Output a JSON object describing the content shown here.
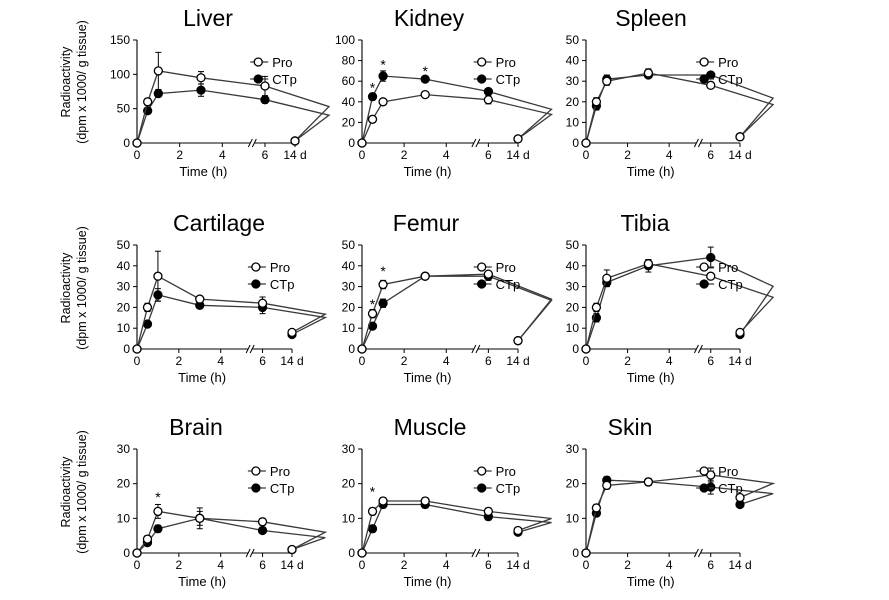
{
  "ylabel_line1": "Radioactivity",
  "ylabel_line2": "(dpm x 1000/ g tissue)",
  "chart_data": [
    {
      "type": "line",
      "title": "Liver",
      "xlabel": "Time (h)",
      "x_ticks": [
        "0",
        "2",
        "4",
        "6",
        "14 d"
      ],
      "ylim": [
        0,
        150
      ],
      "y_ticks": [
        0,
        50,
        100,
        150
      ],
      "legend": [
        "Pro",
        "CTp"
      ],
      "x": [
        0,
        0.5,
        1,
        3,
        6,
        9,
        14
      ],
      "series": [
        {
          "name": "Pro",
          "marker": "open",
          "values": [
            0,
            60,
            105,
            95,
            83,
            null,
            3
          ],
          "errors": [
            0,
            5,
            27,
            9,
            14,
            0,
            0
          ]
        },
        {
          "name": "CTp",
          "marker": "filled",
          "values": [
            0,
            47,
            72,
            77,
            63,
            null,
            3
          ],
          "errors": [
            0,
            4,
            5,
            9,
            5,
            0,
            0
          ]
        }
      ],
      "asterisks": []
    },
    {
      "type": "line",
      "title": "Kidney",
      "xlabel": "Time (h)",
      "x_ticks": [
        "0",
        "2",
        "4",
        "6",
        "14 d"
      ],
      "ylim": [
        0,
        100
      ],
      "y_ticks": [
        0,
        20,
        40,
        60,
        80,
        100
      ],
      "legend": [
        "Pro",
        "CTp"
      ],
      "x": [
        0,
        0.5,
        1,
        3,
        6,
        9,
        14
      ],
      "series": [
        {
          "name": "Pro",
          "marker": "open",
          "values": [
            0,
            23,
            40,
            47,
            42,
            null,
            4
          ],
          "errors": [
            0,
            2,
            3,
            2,
            4,
            0,
            0
          ]
        },
        {
          "name": "CTp",
          "marker": "filled",
          "values": [
            0,
            45,
            65,
            62,
            50,
            null,
            4
          ],
          "errors": [
            0,
            3,
            5,
            2,
            2,
            0,
            0
          ]
        }
      ],
      "asterisks": [
        {
          "x": 0.5,
          "y": 55,
          "text": "*"
        },
        {
          "x": 1,
          "y": 77,
          "text": "*"
        },
        {
          "x": 3,
          "y": 71,
          "text": "*"
        }
      ]
    },
    {
      "type": "line",
      "title": "Spleen",
      "xlabel": "Time (h)",
      "x_ticks": [
        "0",
        "2",
        "4",
        "6",
        "14 d"
      ],
      "ylim": [
        0,
        50
      ],
      "y_ticks": [
        0,
        10,
        20,
        30,
        40,
        50
      ],
      "legend": [
        "Pro",
        "CTp"
      ],
      "x": [
        0,
        0.5,
        1,
        3,
        6,
        9,
        14
      ],
      "series": [
        {
          "name": "Pro",
          "marker": "open",
          "values": [
            0,
            20,
            30,
            34,
            28,
            null,
            3
          ],
          "errors": [
            0,
            2,
            2,
            2,
            1,
            0,
            0
          ]
        },
        {
          "name": "CTp",
          "marker": "filled",
          "values": [
            0,
            18,
            31,
            33,
            33,
            null,
            3
          ],
          "errors": [
            0,
            2,
            2,
            1,
            1,
            0,
            0
          ]
        }
      ],
      "asterisks": []
    },
    {
      "type": "line",
      "title": "Cartilage",
      "xlabel": "Time (h)",
      "x_ticks": [
        "0",
        "2",
        "4",
        "6",
        "14 d"
      ],
      "ylim": [
        0,
        50
      ],
      "y_ticks": [
        0,
        10,
        20,
        30,
        40,
        50
      ],
      "legend": [
        "Pro",
        "CTp"
      ],
      "x": [
        0,
        0.5,
        1,
        3,
        6,
        9,
        14
      ],
      "series": [
        {
          "name": "Pro",
          "marker": "open",
          "values": [
            0,
            20,
            35,
            24,
            22,
            null,
            8
          ],
          "errors": [
            0,
            2,
            12,
            1,
            3,
            0,
            0
          ]
        },
        {
          "name": "CTp",
          "marker": "filled",
          "values": [
            0,
            12,
            26,
            21,
            20,
            null,
            7
          ],
          "errors": [
            0,
            1,
            3,
            1,
            3,
            0,
            0
          ]
        }
      ],
      "asterisks": []
    },
    {
      "type": "line",
      "title": "Femur",
      "xlabel": "Time (h)",
      "x_ticks": [
        "0",
        "2",
        "4",
        "6",
        "14 d"
      ],
      "ylim": [
        0,
        50
      ],
      "y_ticks": [
        0,
        10,
        20,
        30,
        40,
        50
      ],
      "legend": [
        "Pro",
        "CTp"
      ],
      "x": [
        0,
        0.5,
        1,
        3,
        6,
        9,
        14
      ],
      "series": [
        {
          "name": "Pro",
          "marker": "open",
          "values": [
            0,
            17,
            31,
            35,
            36,
            null,
            4
          ],
          "errors": [
            0,
            2,
            2,
            1,
            1,
            0,
            0
          ]
        },
        {
          "name": "CTp",
          "marker": "filled",
          "values": [
            0,
            11,
            22,
            35,
            35,
            null,
            4
          ],
          "errors": [
            0,
            1,
            2,
            1,
            2,
            0,
            0
          ]
        }
      ],
      "asterisks": [
        {
          "x": 0.5,
          "y": 22,
          "text": "*"
        },
        {
          "x": 1,
          "y": 38,
          "text": "*"
        }
      ]
    },
    {
      "type": "line",
      "title": "Tibia",
      "xlabel": "Time (h)",
      "x_ticks": [
        "0",
        "2",
        "4",
        "6",
        "14 d"
      ],
      "ylim": [
        0,
        50
      ],
      "y_ticks": [
        0,
        10,
        20,
        30,
        40,
        50
      ],
      "legend": [
        "Pro",
        "CTp"
      ],
      "x": [
        0,
        0.5,
        1,
        3,
        6,
        9,
        14
      ],
      "series": [
        {
          "name": "Pro",
          "marker": "open",
          "values": [
            0,
            20,
            34,
            41,
            35,
            null,
            8
          ],
          "errors": [
            0,
            2,
            4,
            2,
            1,
            0,
            0
          ]
        },
        {
          "name": "CTp",
          "marker": "filled",
          "values": [
            0,
            15,
            32,
            40,
            44,
            null,
            7
          ],
          "errors": [
            0,
            2,
            2,
            3,
            5,
            0,
            0
          ]
        }
      ],
      "asterisks": []
    },
    {
      "type": "line",
      "title": "Brain",
      "xlabel": "Time (h)",
      "x_ticks": [
        "0",
        "2",
        "4",
        "6",
        "14 d"
      ],
      "ylim": [
        0,
        30
      ],
      "y_ticks": [
        0,
        10,
        20,
        30
      ],
      "legend": [
        "Pro",
        "CTp"
      ],
      "x": [
        0,
        0.5,
        1,
        3,
        6,
        9,
        14
      ],
      "series": [
        {
          "name": "Pro",
          "marker": "open",
          "values": [
            0,
            4,
            12,
            10,
            9,
            null,
            1
          ],
          "errors": [
            0,
            1,
            2,
            2,
            1,
            0,
            0
          ]
        },
        {
          "name": "CTp",
          "marker": "filled",
          "values": [
            0,
            3,
            7,
            10,
            6.5,
            null,
            1
          ],
          "errors": [
            0,
            0.5,
            1,
            3,
            0.5,
            0,
            0
          ]
        }
      ],
      "asterisks": [
        {
          "x": 1,
          "y": 16.5,
          "text": "*"
        }
      ]
    },
    {
      "type": "line",
      "title": "Muscle",
      "xlabel": "Time (h)",
      "x_ticks": [
        "0",
        "2",
        "4",
        "6",
        "14 d"
      ],
      "ylim": [
        0,
        30
      ],
      "y_ticks": [
        0,
        10,
        20,
        30
      ],
      "legend": [
        "Pro",
        "CTp"
      ],
      "x": [
        0,
        0.5,
        1,
        3,
        6,
        9,
        14
      ],
      "series": [
        {
          "name": "Pro",
          "marker": "open",
          "values": [
            0,
            12,
            15,
            15,
            12,
            null,
            6.5
          ],
          "errors": [
            0,
            1,
            1,
            1,
            1,
            0,
            0
          ]
        },
        {
          "name": "CTp",
          "marker": "filled",
          "values": [
            0,
            7,
            14,
            14,
            10.5,
            null,
            6
          ],
          "errors": [
            0,
            1,
            1,
            1,
            1,
            0,
            0
          ]
        }
      ],
      "asterisks": [
        {
          "x": 0.5,
          "y": 18,
          "text": "*"
        }
      ]
    },
    {
      "type": "line",
      "title": "Skin",
      "xlabel": "Time (h)",
      "x_ticks": [
        "0",
        "2",
        "4",
        "6",
        "14 d"
      ],
      "ylim": [
        0,
        30
      ],
      "y_ticks": [
        0,
        10,
        20,
        30
      ],
      "legend": [
        "Pro",
        "CTp"
      ],
      "x": [
        0,
        0.5,
        1,
        3,
        6,
        9,
        14
      ],
      "series": [
        {
          "name": "Pro",
          "marker": "open",
          "values": [
            0,
            13,
            19.5,
            20.5,
            22.5,
            null,
            16
          ],
          "errors": [
            0,
            1,
            1,
            1,
            2,
            0,
            0
          ]
        },
        {
          "name": "CTp",
          "marker": "filled",
          "values": [
            0,
            11.5,
            21,
            20.5,
            19,
            null,
            14
          ],
          "errors": [
            0,
            1,
            1,
            1,
            2,
            0,
            0
          ]
        }
      ],
      "asterisks": []
    }
  ]
}
